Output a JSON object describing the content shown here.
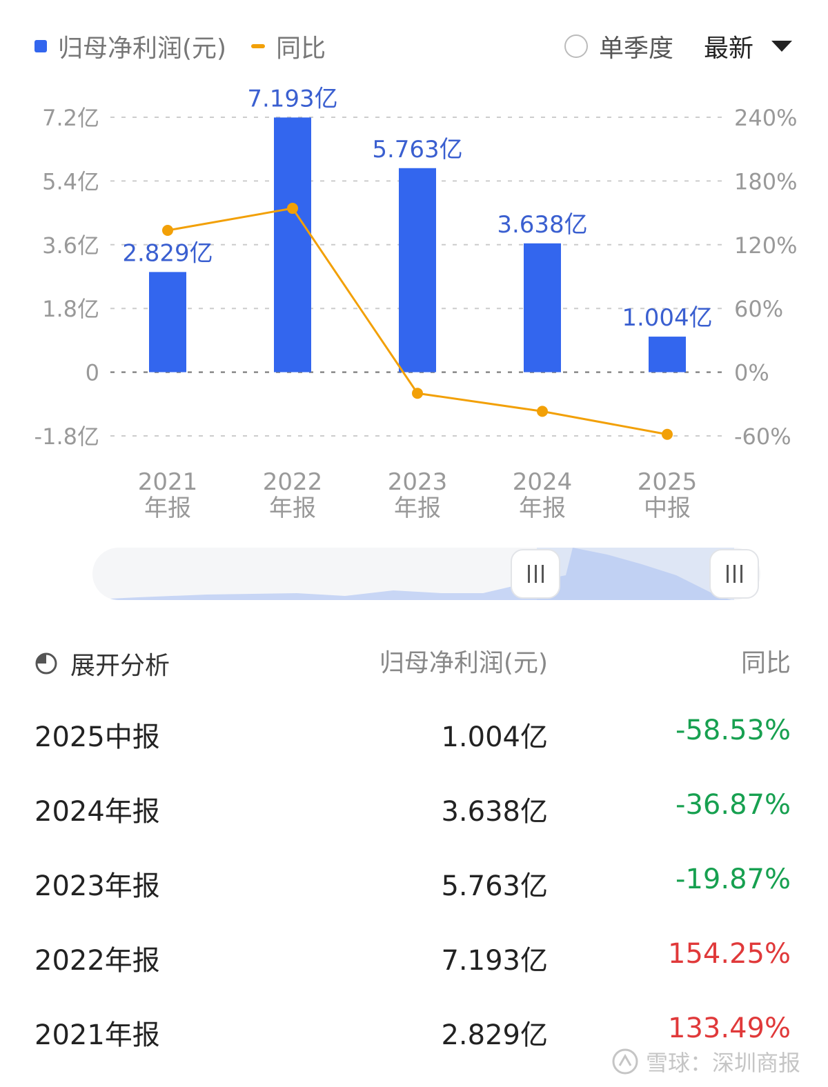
{
  "legend": {
    "bar_label": "归母净利润(元)",
    "line_label": "同比"
  },
  "controls": {
    "quarter_label": "单季度",
    "latest_label": "最新"
  },
  "table": {
    "analysis_label": "展开分析",
    "value_header": "归母净利润(元)",
    "yoy_header": "同比",
    "rows": [
      {
        "period": "2025中报",
        "value": "1.004亿",
        "yoy": "-58.53%",
        "direction": "down"
      },
      {
        "period": "2024年报",
        "value": "3.638亿",
        "yoy": "-36.87%",
        "direction": "down"
      },
      {
        "period": "2023年报",
        "value": "5.763亿",
        "yoy": "-19.87%",
        "direction": "down"
      },
      {
        "period": "2022年报",
        "value": "7.193亿",
        "yoy": "154.25%",
        "direction": "up"
      },
      {
        "period": "2021年报",
        "value": "2.829亿",
        "yoy": "133.49%",
        "direction": "up"
      }
    ]
  },
  "watermark": "雪球：深圳商报",
  "colors": {
    "bar": "#3366ee",
    "line": "#f2a007",
    "bar_label": "#3a5fd0",
    "up": "#e0393a",
    "down": "#17a050",
    "axis_text": "#999999",
    "grid": "#cccccc"
  },
  "chart_data": {
    "type": "bar",
    "categories": [
      [
        "2021",
        "年报"
      ],
      [
        "2022",
        "年报"
      ],
      [
        "2023",
        "年报"
      ],
      [
        "2024",
        "年报"
      ],
      [
        "2025",
        "中报"
      ]
    ],
    "series": [
      {
        "name": "归母净利润(元)",
        "type": "bar",
        "axis": "left",
        "values": [
          2.829,
          7.193,
          5.763,
          3.638,
          1.004
        ],
        "value_labels": [
          "2.829亿",
          "7.193亿",
          "5.763亿",
          "3.638亿",
          "1.004亿"
        ]
      },
      {
        "name": "同比",
        "type": "line",
        "axis": "right",
        "values": [
          133.49,
          154.25,
          -19.87,
          -36.87,
          -58.53
        ]
      }
    ],
    "left_axis": {
      "ticks": [
        7.2,
        5.4,
        3.6,
        1.8,
        0,
        -1.8
      ],
      "tick_labels": [
        "7.2亿",
        "5.4亿",
        "3.6亿",
        "1.8亿",
        "0",
        "-1.8亿"
      ],
      "range": [
        -1.8,
        7.2
      ]
    },
    "right_axis": {
      "ticks": [
        240,
        180,
        120,
        60,
        0,
        -60
      ],
      "tick_labels": [
        "240%",
        "180%",
        "120%",
        "60%",
        "0%",
        "-60%"
      ],
      "range": [
        -60,
        240
      ]
    },
    "grid": true,
    "legend_position": "top-left"
  }
}
